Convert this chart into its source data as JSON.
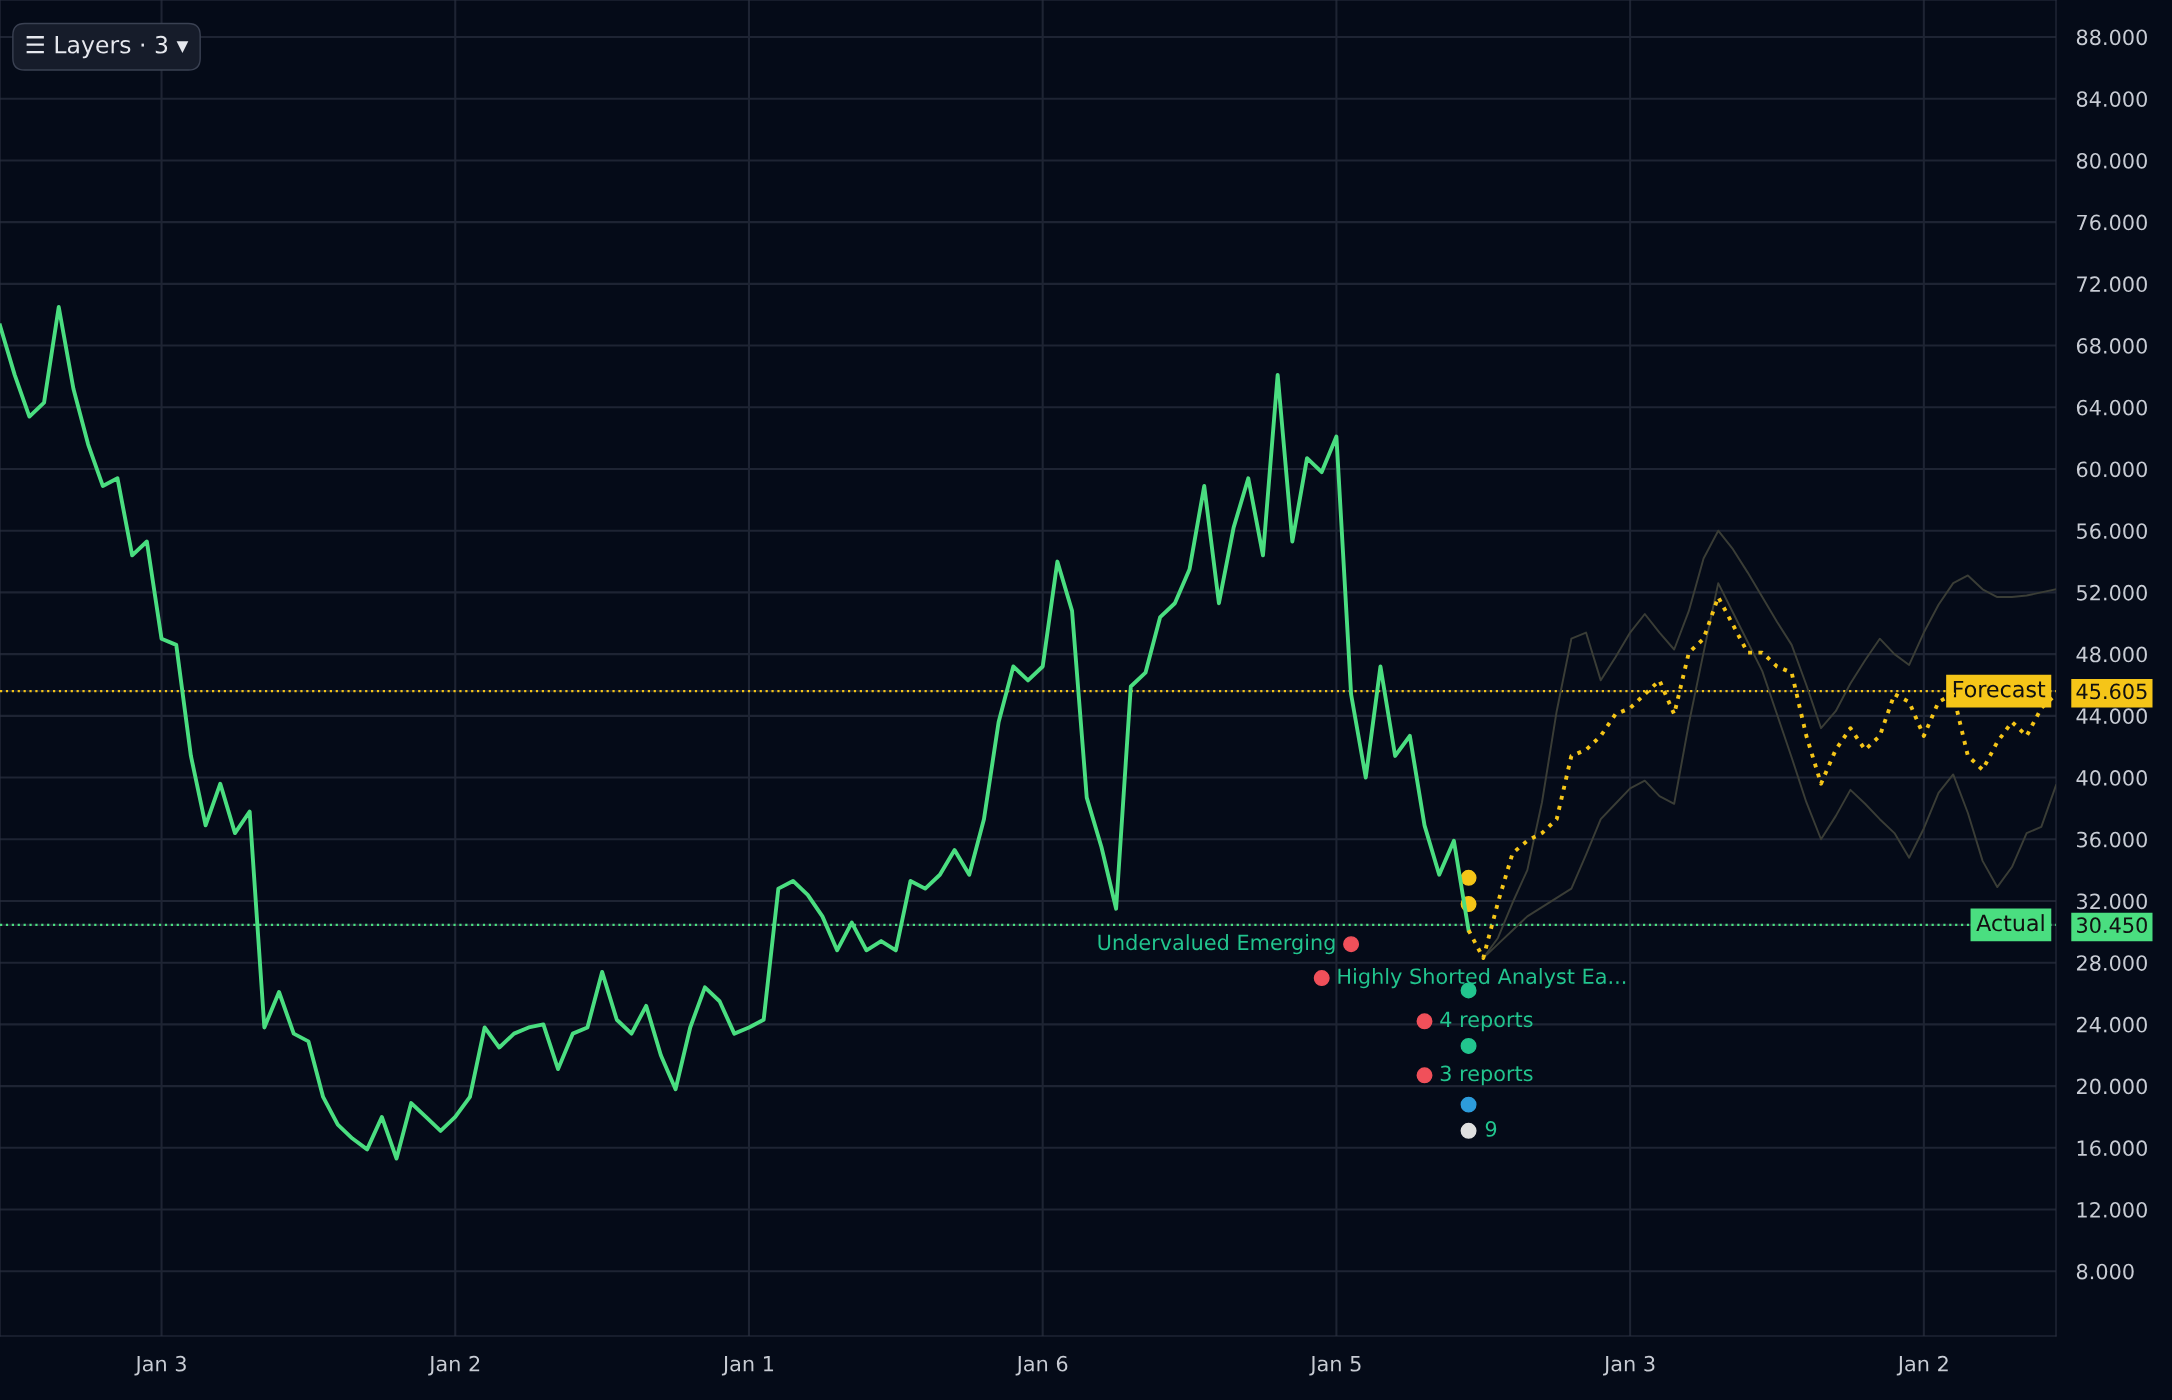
{
  "chart_data": {
    "type": "line",
    "categories": [
      null,
      null,
      null,
      null,
      null,
      null,
      null,
      null,
      null,
      null,
      null,
      "Jan 3",
      null,
      null,
      null,
      null,
      null,
      null,
      null,
      null,
      null,
      null,
      null,
      null,
      null,
      null,
      null,
      null,
      null,
      null,
      null,
      "Jan 2",
      null,
      null,
      null,
      null,
      null,
      null,
      null,
      null,
      null,
      null,
      null,
      null,
      null,
      null,
      null,
      null,
      null,
      null,
      null,
      "Jan 1",
      null,
      null,
      null,
      null,
      null,
      null,
      null,
      null,
      null,
      null,
      null,
      null,
      null,
      null,
      null,
      null,
      null,
      null,
      null,
      "Jan 6",
      null,
      null,
      null,
      null,
      null,
      null,
      null,
      null,
      null,
      null,
      null,
      null,
      null,
      null,
      null,
      null,
      null,
      null,
      null,
      "Jan 5",
      null,
      null,
      null,
      null,
      null,
      null,
      null,
      null,
      null,
      null,
      null,
      null,
      null,
      null,
      null,
      null,
      null,
      null,
      null,
      "Jan 3",
      null,
      null,
      null,
      null,
      null,
      null,
      null,
      null,
      null,
      null,
      null,
      null,
      null,
      null,
      null,
      null,
      null,
      null,
      null,
      "Jan 2",
      null,
      null,
      null,
      null,
      null,
      null,
      null,
      null,
      null
    ],
    "ylim": [
      3.8,
      90.4
    ],
    "yticks": [
      {
        "value": 8,
        "label": "8.000"
      },
      {
        "value": 12,
        "label": "12.000"
      },
      {
        "value": 16,
        "label": "16.000"
      },
      {
        "value": 20,
        "label": "20.000"
      },
      {
        "value": 24,
        "label": "24.000"
      },
      {
        "value": 28,
        "label": "28.000"
      },
      {
        "value": 30.45,
        "label": "30.450"
      },
      {
        "value": 32,
        "label": "32.000"
      },
      {
        "value": 36,
        "label": "36.000"
      },
      {
        "value": 40,
        "label": "40.000"
      },
      {
        "value": 44,
        "label": "44.000"
      },
      {
        "value": 45.605,
        "label": "45.605"
      },
      {
        "value": 48,
        "label": "48.000"
      },
      {
        "value": 52,
        "label": "52.000"
      },
      {
        "value": 56,
        "label": "56.000"
      },
      {
        "value": 60,
        "label": "60.000"
      },
      {
        "value": 64,
        "label": "64.000"
      },
      {
        "value": 68,
        "label": "68.000"
      },
      {
        "value": 72,
        "label": "72.000"
      },
      {
        "value": 76,
        "label": "76.000"
      },
      {
        "value": 80,
        "label": "80.000"
      },
      {
        "value": 84,
        "label": "84.000"
      },
      {
        "value": 88,
        "label": "88.000"
      }
    ],
    "grid": true,
    "legend": false,
    "series": [
      {
        "color": "#3a3d36",
        "line_style": "solid",
        "values": [
          null,
          null,
          null,
          null,
          null,
          null,
          null,
          null,
          null,
          null,
          null,
          null,
          null,
          null,
          null,
          null,
          null,
          null,
          null,
          null,
          null,
          null,
          null,
          null,
          null,
          null,
          null,
          null,
          null,
          null,
          null,
          null,
          null,
          null,
          null,
          null,
          null,
          null,
          null,
          null,
          null,
          null,
          null,
          null,
          null,
          null,
          null,
          null,
          null,
          null,
          null,
          null,
          null,
          null,
          null,
          null,
          null,
          null,
          null,
          null,
          null,
          null,
          null,
          null,
          null,
          null,
          null,
          null,
          null,
          null,
          null,
          null,
          null,
          null,
          null,
          null,
          null,
          null,
          null,
          null,
          null,
          null,
          null,
          null,
          null,
          null,
          null,
          null,
          null,
          null,
          null,
          null,
          null,
          null,
          null,
          null,
          null,
          null,
          null,
          null,
          null,
          28.3,
          29.6,
          31.9,
          34.0,
          38.4,
          44.3,
          49.0,
          49.4,
          46.3,
          47.8,
          49.4,
          50.6,
          49.4,
          48.3,
          50.8,
          54.2,
          56.0,
          54.8,
          53.3,
          51.7,
          50.1,
          48.6,
          46.0,
          43.2,
          44.3,
          46.1,
          47.6,
          49.0,
          48.0,
          47.3,
          49.4,
          51.2,
          52.6,
          53.1,
          52.2,
          51.7,
          51.7,
          51.8,
          52.0,
          52.2
        ]
      },
      {
        "color": "#3a3d36",
        "line_style": "solid",
        "values": [
          null,
          null,
          null,
          null,
          null,
          null,
          null,
          null,
          null,
          null,
          null,
          null,
          null,
          null,
          null,
          null,
          null,
          null,
          null,
          null,
          null,
          null,
          null,
          null,
          null,
          null,
          null,
          null,
          null,
          null,
          null,
          null,
          null,
          null,
          null,
          null,
          null,
          null,
          null,
          null,
          null,
          null,
          null,
          null,
          null,
          null,
          null,
          null,
          null,
          null,
          null,
          null,
          null,
          null,
          null,
          null,
          null,
          null,
          null,
          null,
          null,
          null,
          null,
          null,
          null,
          null,
          null,
          null,
          null,
          null,
          null,
          null,
          null,
          null,
          null,
          null,
          null,
          null,
          null,
          null,
          null,
          null,
          null,
          null,
          null,
          null,
          null,
          null,
          null,
          null,
          null,
          null,
          null,
          null,
          null,
          null,
          null,
          null,
          null,
          null,
          null,
          28.3,
          29.2,
          30.1,
          31.0,
          31.6,
          32.2,
          32.8,
          35.0,
          37.3,
          38.3,
          39.3,
          39.8,
          38.8,
          38.3,
          43.5,
          48.1,
          52.6,
          50.7,
          48.8,
          46.9,
          44.1,
          41.3,
          38.4,
          36.0,
          37.5,
          39.2,
          38.3,
          37.3,
          36.4,
          34.8,
          36.7,
          39.0,
          40.2,
          37.7,
          34.6,
          32.9,
          34.2,
          36.4,
          36.8,
          39.5
        ]
      },
      {
        "color": "#4ade80",
        "line_style": "solid",
        "values": [
          69.3,
          66.1,
          63.4,
          64.3,
          70.5,
          65.2,
          61.6,
          58.9,
          59.4,
          54.4,
          55.3,
          49.0,
          48.6,
          41.4,
          36.9,
          39.6,
          36.4,
          37.8,
          23.8,
          26.1,
          23.4,
          22.9,
          19.3,
          17.5,
          16.6,
          15.9,
          18.0,
          15.3,
          18.9,
          18.0,
          17.1,
          18.0,
          19.3,
          23.8,
          22.5,
          23.4,
          23.8,
          24.0,
          21.1,
          23.4,
          23.8,
          27.4,
          24.3,
          23.4,
          25.2,
          22.0,
          19.8,
          23.8,
          26.4,
          25.5,
          23.4,
          23.8,
          24.3,
          32.8,
          33.3,
          32.4,
          31.0,
          28.8,
          30.6,
          28.8,
          29.4,
          28.8,
          33.3,
          32.8,
          33.7,
          35.3,
          33.7,
          37.3,
          43.6,
          47.2,
          46.3,
          47.2,
          54.0,
          50.8,
          38.7,
          35.5,
          31.5,
          45.9,
          46.8,
          50.4,
          51.3,
          53.5,
          58.9,
          51.3,
          56.2,
          59.4,
          54.4,
          66.1,
          55.3,
          60.7,
          59.8,
          62.1,
          45.4,
          40.0,
          47.2,
          41.4,
          42.7,
          36.9,
          33.7,
          35.9,
          30.1,
          null,
          null,
          null,
          null,
          null,
          null,
          null,
          null,
          null,
          null,
          null,
          null,
          null,
          null,
          null,
          null,
          null,
          null,
          null,
          null,
          null,
          null,
          null,
          null,
          null,
          null,
          null,
          null,
          null,
          null,
          null,
          null,
          null,
          null,
          null,
          null,
          null,
          null,
          null,
          null
        ]
      },
      {
        "color": "#f5c518",
        "line_style": "dotted",
        "values": [
          null,
          null,
          null,
          null,
          null,
          null,
          null,
          null,
          null,
          null,
          null,
          null,
          null,
          null,
          null,
          null,
          null,
          null,
          null,
          null,
          null,
          null,
          null,
          null,
          null,
          null,
          null,
          null,
          null,
          null,
          null,
          null,
          null,
          null,
          null,
          null,
          null,
          null,
          null,
          null,
          null,
          null,
          null,
          null,
          null,
          null,
          null,
          null,
          null,
          null,
          null,
          null,
          null,
          null,
          null,
          null,
          null,
          null,
          null,
          null,
          null,
          null,
          null,
          null,
          null,
          null,
          null,
          null,
          null,
          null,
          null,
          null,
          null,
          null,
          null,
          null,
          null,
          null,
          null,
          null,
          null,
          null,
          null,
          null,
          null,
          null,
          null,
          null,
          null,
          null,
          null,
          null,
          null,
          null,
          null,
          null,
          null,
          null,
          null,
          null,
          30.1,
          28.3,
          31.9,
          35.1,
          35.9,
          36.4,
          37.3,
          41.4,
          41.8,
          42.7,
          44.1,
          44.5,
          45.4,
          46.3,
          44.1,
          48.1,
          49.0,
          51.7,
          49.9,
          48.1,
          48.1,
          47.2,
          46.8,
          42.7,
          39.6,
          41.8,
          43.2,
          41.8,
          42.7,
          45.4,
          44.9,
          42.7,
          44.9,
          45.4,
          41.4,
          40.5,
          42.3,
          43.6,
          42.7,
          44.5,
          45.4
        ]
      },
      {
        "type": "scatter",
        "color": "#f0505a",
        "values": [
          null,
          null,
          null,
          null,
          null,
          null,
          null,
          null,
          null,
          null,
          null,
          null,
          null,
          null,
          null,
          null,
          null,
          null,
          null,
          null,
          null,
          null,
          null,
          null,
          null,
          null,
          null,
          null,
          null,
          null,
          null,
          null,
          null,
          null,
          null,
          null,
          null,
          null,
          null,
          null,
          null,
          null,
          null,
          null,
          null,
          null,
          null,
          null,
          null,
          null,
          null,
          null,
          null,
          null,
          null,
          null,
          null,
          null,
          null,
          null,
          null,
          null,
          null,
          null,
          null,
          null,
          null,
          null,
          null,
          null,
          null,
          null,
          null,
          null,
          null,
          null,
          null,
          null,
          null,
          null,
          null,
          null,
          null,
          null,
          null,
          null,
          null,
          null,
          null,
          null,
          27.0,
          null,
          29.2,
          null,
          null,
          null,
          null,
          24.2,
          null,
          null,
          null,
          null,
          null,
          null,
          null,
          null,
          null,
          null,
          null,
          null,
          null,
          null,
          null,
          null,
          null,
          null,
          null,
          null,
          null,
          null,
          null,
          null,
          null,
          null,
          null,
          null,
          null,
          null,
          null,
          null,
          null,
          null,
          null,
          null,
          null,
          null,
          null,
          null,
          null,
          null,
          null
        ]
      },
      {
        "type": "scatter",
        "color": "#f0505a",
        "values": [
          null,
          null,
          null,
          null,
          null,
          null,
          null,
          null,
          null,
          null,
          null,
          null,
          null,
          null,
          null,
          null,
          null,
          null,
          null,
          null,
          null,
          null,
          null,
          null,
          null,
          null,
          null,
          null,
          null,
          null,
          null,
          null,
          null,
          null,
          null,
          null,
          null,
          null,
          null,
          null,
          null,
          null,
          null,
          null,
          null,
          null,
          null,
          null,
          null,
          null,
          null,
          null,
          null,
          null,
          null,
          null,
          null,
          null,
          null,
          null,
          null,
          null,
          null,
          null,
          null,
          null,
          null,
          null,
          null,
          null,
          null,
          null,
          null,
          null,
          null,
          null,
          null,
          null,
          null,
          null,
          null,
          null,
          null,
          null,
          null,
          null,
          null,
          null,
          null,
          null,
          null,
          null,
          null,
          null,
          null,
          null,
          null,
          20.7,
          null,
          null,
          null,
          null,
          null,
          null,
          null,
          null,
          null,
          null,
          null,
          null,
          null,
          null,
          null,
          null,
          null,
          null,
          null,
          null,
          null,
          null,
          null,
          null,
          null,
          null,
          null,
          null,
          null,
          null,
          null,
          null,
          null,
          null,
          null,
          null,
          null,
          null,
          null,
          null,
          null,
          null,
          null
        ]
      },
      {
        "type": "scatter",
        "color": "#f5c518",
        "values": [
          null,
          null,
          null,
          null,
          null,
          null,
          null,
          null,
          null,
          null,
          null,
          null,
          null,
          null,
          null,
          null,
          null,
          null,
          null,
          null,
          null,
          null,
          null,
          null,
          null,
          null,
          null,
          null,
          null,
          null,
          null,
          null,
          null,
          null,
          null,
          null,
          null,
          null,
          null,
          null,
          null,
          null,
          null,
          null,
          null,
          null,
          null,
          null,
          null,
          null,
          null,
          null,
          null,
          null,
          null,
          null,
          null,
          null,
          null,
          null,
          null,
          null,
          null,
          null,
          null,
          null,
          null,
          null,
          null,
          null,
          null,
          null,
          null,
          null,
          null,
          null,
          null,
          null,
          null,
          null,
          null,
          null,
          null,
          null,
          null,
          null,
          null,
          null,
          null,
          null,
          null,
          null,
          null,
          null,
          null,
          null,
          null,
          null,
          null,
          null,
          33.5,
          null,
          null,
          null,
          null,
          null,
          null,
          null,
          null,
          null,
          null,
          null,
          null,
          null,
          null,
          null,
          null,
          null,
          null,
          null,
          null,
          null,
          null,
          null,
          null,
          null,
          null,
          null,
          null,
          null,
          null,
          null,
          null,
          null,
          null,
          null,
          null,
          null,
          null,
          null,
          null
        ]
      },
      {
        "type": "scatter",
        "color": "#f5c518",
        "values": [
          null,
          null,
          null,
          null,
          null,
          null,
          null,
          null,
          null,
          null,
          null,
          null,
          null,
          null,
          null,
          null,
          null,
          null,
          null,
          null,
          null,
          null,
          null,
          null,
          null,
          null,
          null,
          null,
          null,
          null,
          null,
          null,
          null,
          null,
          null,
          null,
          null,
          null,
          null,
          null,
          null,
          null,
          null,
          null,
          null,
          null,
          null,
          null,
          null,
          null,
          null,
          null,
          null,
          null,
          null,
          null,
          null,
          null,
          null,
          null,
          null,
          null,
          null,
          null,
          null,
          null,
          null,
          null,
          null,
          null,
          null,
          null,
          null,
          null,
          null,
          null,
          null,
          null,
          null,
          null,
          null,
          null,
          null,
          null,
          null,
          null,
          null,
          null,
          null,
          null,
          null,
          null,
          null,
          null,
          null,
          null,
          null,
          null,
          null,
          null,
          31.8,
          null,
          null,
          null,
          null,
          null,
          null,
          null,
          null,
          null,
          null,
          null,
          null,
          null,
          null,
          null,
          null,
          null,
          null,
          null,
          null,
          null,
          null,
          null,
          null,
          null,
          null,
          null,
          null,
          null,
          null,
          null,
          null,
          null,
          null,
          null,
          null,
          null,
          null,
          null,
          null
        ]
      },
      {
        "type": "scatter",
        "color": "#22c58e",
        "values": [
          null,
          null,
          null,
          null,
          null,
          null,
          null,
          null,
          null,
          null,
          null,
          null,
          null,
          null,
          null,
          null,
          null,
          null,
          null,
          null,
          null,
          null,
          null,
          null,
          null,
          null,
          null,
          null,
          null,
          null,
          null,
          null,
          null,
          null,
          null,
          null,
          null,
          null,
          null,
          null,
          null,
          null,
          null,
          null,
          null,
          null,
          null,
          null,
          null,
          null,
          null,
          null,
          null,
          null,
          null,
          null,
          null,
          null,
          null,
          null,
          null,
          null,
          null,
          null,
          null,
          null,
          null,
          null,
          null,
          null,
          null,
          null,
          null,
          null,
          null,
          null,
          null,
          null,
          null,
          null,
          null,
          null,
          null,
          null,
          null,
          null,
          null,
          null,
          null,
          null,
          null,
          null,
          null,
          null,
          null,
          null,
          null,
          null,
          null,
          null,
          26.2,
          null,
          null,
          null,
          null,
          null,
          null,
          null,
          null,
          null,
          null,
          null,
          null,
          null,
          null,
          null,
          null,
          null,
          null,
          null,
          null,
          null,
          null,
          null,
          null,
          null,
          null,
          null,
          null,
          null,
          null,
          null,
          null,
          null,
          null,
          null,
          null,
          null,
          null,
          null,
          null
        ]
      },
      {
        "type": "scatter",
        "color": "#22c58e",
        "values": [
          null,
          null,
          null,
          null,
          null,
          null,
          null,
          null,
          null,
          null,
          null,
          null,
          null,
          null,
          null,
          null,
          null,
          null,
          null,
          null,
          null,
          null,
          null,
          null,
          null,
          null,
          null,
          null,
          null,
          null,
          null,
          null,
          null,
          null,
          null,
          null,
          null,
          null,
          null,
          null,
          null,
          null,
          null,
          null,
          null,
          null,
          null,
          null,
          null,
          null,
          null,
          null,
          null,
          null,
          null,
          null,
          null,
          null,
          null,
          null,
          null,
          null,
          null,
          null,
          null,
          null,
          null,
          null,
          null,
          null,
          null,
          null,
          null,
          null,
          null,
          null,
          null,
          null,
          null,
          null,
          null,
          null,
          null,
          null,
          null,
          null,
          null,
          null,
          null,
          null,
          null,
          null,
          null,
          null,
          null,
          null,
          null,
          null,
          null,
          null,
          22.6,
          null,
          null,
          null,
          null,
          null,
          null,
          null,
          null,
          null,
          null,
          null,
          null,
          null,
          null,
          null,
          null,
          null,
          null,
          null,
          null,
          null,
          null,
          null,
          null,
          null,
          null,
          null,
          null,
          null,
          null,
          null,
          null,
          null,
          null,
          null,
          null,
          null,
          null,
          null,
          null
        ]
      },
      {
        "type": "scatter",
        "color": "#2d9cdb",
        "values": [
          null,
          null,
          null,
          null,
          null,
          null,
          null,
          null,
          null,
          null,
          null,
          null,
          null,
          null,
          null,
          null,
          null,
          null,
          null,
          null,
          null,
          null,
          null,
          null,
          null,
          null,
          null,
          null,
          null,
          null,
          null,
          null,
          null,
          null,
          null,
          null,
          null,
          null,
          null,
          null,
          null,
          null,
          null,
          null,
          null,
          null,
          null,
          null,
          null,
          null,
          null,
          null,
          null,
          null,
          null,
          null,
          null,
          null,
          null,
          null,
          null,
          null,
          null,
          null,
          null,
          null,
          null,
          null,
          null,
          null,
          null,
          null,
          null,
          null,
          null,
          null,
          null,
          null,
          null,
          null,
          null,
          null,
          null,
          null,
          null,
          null,
          null,
          null,
          null,
          null,
          null,
          null,
          null,
          null,
          null,
          null,
          null,
          null,
          null,
          null,
          18.8,
          null,
          null,
          null,
          null,
          null,
          null,
          null,
          null,
          null,
          null,
          null,
          null,
          null,
          null,
          null,
          null,
          null,
          null,
          null,
          null,
          null,
          null,
          null,
          null,
          null,
          null,
          null,
          null,
          null,
          null,
          null,
          null,
          null,
          null,
          null,
          null,
          null,
          null,
          null,
          null
        ]
      },
      {
        "type": "scatter",
        "color": "#e0e0e0",
        "values": [
          null,
          null,
          null,
          null,
          null,
          null,
          null,
          null,
          null,
          null,
          null,
          null,
          null,
          null,
          null,
          null,
          null,
          null,
          null,
          null,
          null,
          null,
          null,
          null,
          null,
          null,
          null,
          null,
          null,
          null,
          null,
          null,
          null,
          null,
          null,
          null,
          null,
          null,
          null,
          null,
          null,
          null,
          null,
          null,
          null,
          null,
          null,
          null,
          null,
          null,
          null,
          null,
          null,
          null,
          null,
          null,
          null,
          null,
          null,
          null,
          null,
          null,
          null,
          null,
          null,
          null,
          null,
          null,
          null,
          null,
          null,
          null,
          null,
          null,
          null,
          null,
          null,
          null,
          null,
          null,
          null,
          null,
          null,
          null,
          null,
          null,
          null,
          null,
          null,
          null,
          null,
          null,
          null,
          null,
          null,
          null,
          null,
          null,
          null,
          null,
          17.1,
          null,
          null,
          null,
          null,
          null,
          null,
          null,
          null,
          null,
          null,
          null,
          null,
          null,
          null,
          null,
          null,
          null,
          null,
          null,
          null,
          null,
          null,
          null,
          null,
          null,
          null,
          null,
          null,
          null,
          null,
          null,
          null,
          null,
          null,
          null,
          null,
          null,
          null,
          null,
          null
        ]
      }
    ],
    "ref_lines": [
      {
        "axis": "y",
        "value": 45.605,
        "label": "Forecast",
        "color": "#f5c518",
        "line_style": "dotted"
      },
      {
        "axis": "y",
        "value": 30.45,
        "label": "Actual",
        "color": "#4ade80",
        "line_style": "dotted"
      }
    ],
    "annotations": [
      "☰ Layers · 3 ▾",
      "Undervalued Emerging",
      "Highly Shorted Analyst Ea...",
      "4 reports",
      "3 reports",
      "9"
    ]
  }
}
